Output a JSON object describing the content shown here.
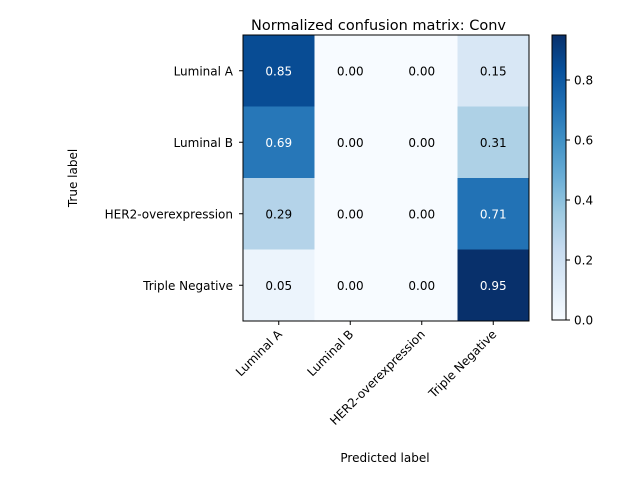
{
  "chart_data": {
    "type": "heatmap",
    "title": "Normalized confusion matrix: Conv",
    "xlabel": "Predicted label",
    "ylabel": "True label",
    "row_labels": [
      "Luminal A",
      "Luminal B",
      "HER2-overexpression",
      "Triple Negative"
    ],
    "col_labels": [
      "Luminal A",
      "Luminal B",
      "HER2-overexpression",
      "Triple Negative"
    ],
    "values": [
      [
        0.85,
        0.0,
        0.0,
        0.15
      ],
      [
        0.69,
        0.0,
        0.0,
        0.31
      ],
      [
        0.29,
        0.0,
        0.0,
        0.71
      ],
      [
        0.05,
        0.0,
        0.0,
        0.95
      ]
    ],
    "value_labels": [
      [
        "0.85",
        "0.00",
        "0.00",
        "0.15"
      ],
      [
        "0.69",
        "0.00",
        "0.00",
        "0.31"
      ],
      [
        "0.29",
        "0.00",
        "0.00",
        "0.71"
      ],
      [
        "0.05",
        "0.00",
        "0.00",
        "0.95"
      ]
    ],
    "colorbar": {
      "range": [
        0,
        0.95
      ],
      "ticks": [
        "0.0",
        "0.2",
        "0.4",
        "0.6",
        "0.8"
      ],
      "colormap": "Blues"
    },
    "colormap_stops": [
      "#f7fbff",
      "#deebf7",
      "#c6dbef",
      "#9ecae1",
      "#6baed6",
      "#4292c6",
      "#2171b5",
      "#08519c",
      "#08306b"
    ],
    "text_dark_color": "#000000",
    "text_light_color": "#ffffff"
  }
}
